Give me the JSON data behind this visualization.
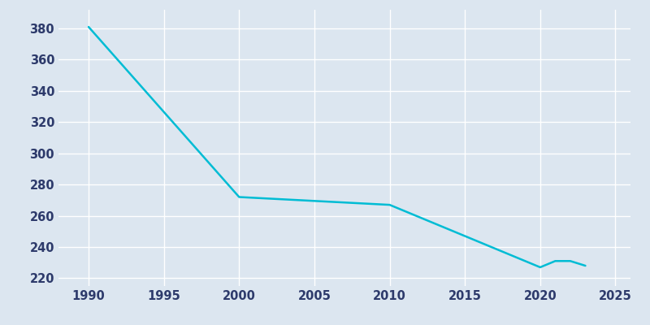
{
  "years": [
    1990,
    2000,
    2010,
    2020,
    2021,
    2022,
    2023
  ],
  "population": [
    381,
    272,
    267,
    227,
    231,
    231,
    228
  ],
  "line_color": "#00bcd4",
  "bg_color": "#dce6f0",
  "plot_bg_color": "#dce6f0",
  "grid_color": "#ffffff",
  "tick_color": "#2d3a6b",
  "xlim": [
    1988,
    2026
  ],
  "ylim": [
    215,
    392
  ],
  "xticks": [
    1990,
    1995,
    2000,
    2005,
    2010,
    2015,
    2020,
    2025
  ],
  "yticks": [
    220,
    240,
    260,
    280,
    300,
    320,
    340,
    360,
    380
  ],
  "linewidth": 1.8,
  "figsize": [
    8.0,
    4.0
  ],
  "dpi": 100
}
